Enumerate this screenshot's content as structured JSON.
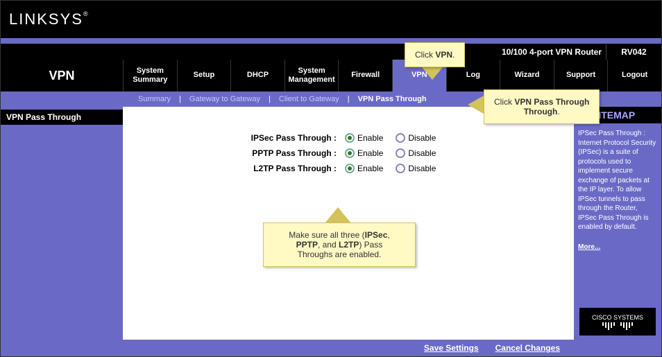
{
  "colors": {
    "purple": "#6a6ac6",
    "black": "#000000",
    "callout_bg": "#fff9c4",
    "callout_border": "#d4c25a",
    "radio_on_border": "#77aa99",
    "radio_on_dot": "#2a7a2a",
    "radio_off_border": "#8888bb"
  },
  "logo": "LINKSYS",
  "logo_reg": "®",
  "device_name": "10/100 4-port VPN Router",
  "model": "RV042",
  "section": "VPN",
  "nav": [
    {
      "label_line1": "System",
      "label_line2": "Summary"
    },
    {
      "label_line1": "Setup",
      "label_line2": ""
    },
    {
      "label_line1": "DHCP",
      "label_line2": ""
    },
    {
      "label_line1": "System",
      "label_line2": "Management"
    },
    {
      "label_line1": "Firewall",
      "label_line2": ""
    },
    {
      "label_line1": "VPN",
      "label_line2": "",
      "active": true
    },
    {
      "label_line1": "Log",
      "label_line2": ""
    },
    {
      "label_line1": "Wizard",
      "label_line2": ""
    },
    {
      "label_line1": "Support",
      "label_line2": ""
    },
    {
      "label_line1": "Logout",
      "label_line2": ""
    }
  ],
  "subnav": [
    {
      "label": "Summary"
    },
    {
      "label": "Gateway to Gateway"
    },
    {
      "label": "Client to Gateway"
    },
    {
      "label": "VPN Pass Through",
      "active": true
    }
  ],
  "page_label": "VPN Pass Through",
  "options": [
    {
      "label": "IPSec Pass Through :",
      "enable": "Enable",
      "disable": "Disable",
      "value": "enable"
    },
    {
      "label": "PPTP Pass Through :",
      "enable": "Enable",
      "disable": "Disable",
      "value": "enable"
    },
    {
      "label": "L2TP Pass Through :",
      "enable": "Enable",
      "disable": "Disable",
      "value": "enable"
    }
  ],
  "sitemap_label": "SITEMAP",
  "help_text": "IPSec Pass Through : Internet Protocol Security (IPSec) is a suite of protocols used to implement secure exchange of packets at the IP layer. To allow IPSec tunnels to pass through the Router, IPSec Pass Through is enabled by default.",
  "more_label": "More...",
  "cisco_label": "CISCO SYSTEMS",
  "footer": {
    "save": "Save Settings",
    "cancel": "Cancel Changes"
  },
  "callouts": {
    "c1": {
      "pre": "Click ",
      "bold": "VPN",
      "post": "."
    },
    "c2": {
      "pre": "Click ",
      "bold": "VPN Pass Through",
      "post": "."
    },
    "c3_line1_pre": "Make sure all three (",
    "c3_b1": "IPSec",
    "c3_s1": ", ",
    "c3_b2": "PPTP",
    "c3_s2": ", and ",
    "c3_b3": "L2TP",
    "c3_s3": ") Pass",
    "c3_line2": "Throughs are enabled."
  }
}
